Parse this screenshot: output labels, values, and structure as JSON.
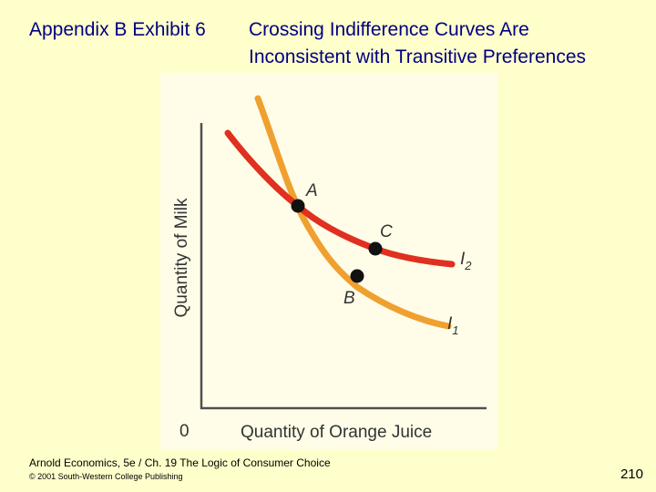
{
  "slide": {
    "exhibit_label": "Appendix B Exhibit 6",
    "title_line1": "Crossing Indifference Curves Are",
    "title_line2": "Inconsistent with Transitive Preferences",
    "source": "Arnold Economics, 5e / Ch. 19  The Logic of Consumer Choice",
    "copyright": "© 2001 South-Western College Publishing",
    "page_number": "210"
  },
  "diagram": {
    "y_axis_label": "Quantity of Milk",
    "x_axis_label": "Quantity of Orange Juice",
    "origin_label": "0",
    "curves": [
      {
        "name": "I",
        "subscript": "1",
        "color": "#f0a030"
      },
      {
        "name": "I",
        "subscript": "2",
        "color": "#e03020"
      }
    ],
    "points": [
      {
        "label": "A"
      },
      {
        "label": "B"
      },
      {
        "label": "C"
      }
    ]
  }
}
